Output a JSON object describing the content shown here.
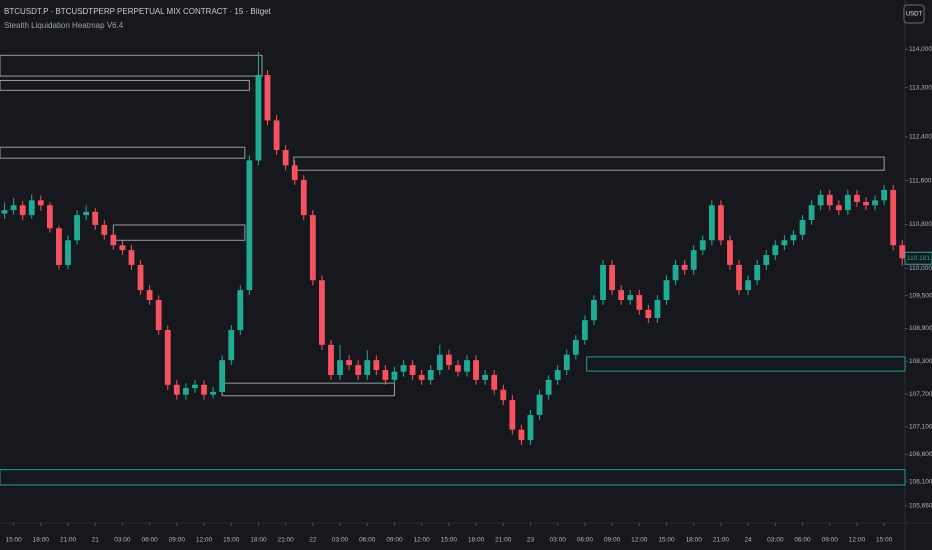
{
  "chart_data": {
    "type": "candlestick",
    "title": "BTCUSDT.P · BTCUSDTPERP PERPETUAL MIX CONTRACT · 15 · Bitget",
    "subtitle": "Stealth Liquidation Heatmap V6.4",
    "currency_button": "USDT",
    "up_color": "#22ab94",
    "down_color": "#f7525f",
    "xlim": [
      -1.5,
      98.3
    ],
    "xticks": [
      {
        "value": 0,
        "label": "15:00"
      },
      {
        "value": 3,
        "label": "18:00"
      },
      {
        "value": 6,
        "label": "21:00"
      },
      {
        "value": 9,
        "label": "21"
      },
      {
        "value": 12,
        "label": "03:00"
      },
      {
        "value": 15,
        "label": "06:00"
      },
      {
        "value": 18,
        "label": "09:00"
      },
      {
        "value": 21,
        "label": "12:00"
      },
      {
        "value": 24,
        "label": "15:00"
      },
      {
        "value": 27,
        "label": "18:00"
      },
      {
        "value": 30,
        "label": "21:00"
      },
      {
        "value": 33,
        "label": "22"
      },
      {
        "value": 36,
        "label": "03:00"
      },
      {
        "value": 39,
        "label": "06:00"
      },
      {
        "value": 42,
        "label": "09:00"
      },
      {
        "value": 45,
        "label": "12:00"
      },
      {
        "value": 48,
        "label": "15:00"
      },
      {
        "value": 51,
        "label": "18:00"
      },
      {
        "value": 54,
        "label": "21:00"
      },
      {
        "value": 57,
        "label": "23"
      },
      {
        "value": 60,
        "label": "03:00"
      },
      {
        "value": 63,
        "label": "06:00"
      },
      {
        "value": 66,
        "label": "09:00"
      },
      {
        "value": 69,
        "label": "12:00"
      },
      {
        "value": 72,
        "label": "15:00"
      },
      {
        "value": 75,
        "label": "18:00"
      },
      {
        "value": 78,
        "label": "21:00"
      },
      {
        "value": 81,
        "label": "24"
      },
      {
        "value": 84,
        "label": "03:00"
      },
      {
        "value": 87,
        "label": "06:00"
      },
      {
        "value": 90,
        "label": "09:00"
      },
      {
        "value": 93,
        "label": "12:00"
      },
      {
        "value": 96,
        "label": "15:00"
      }
    ],
    "ylim": [
      105400,
      114900
    ],
    "yticks": [
      {
        "value": 114000,
        "label": "114,000.0"
      },
      {
        "value": 113300,
        "label": "113,300.0"
      },
      {
        "value": 112400,
        "label": "112,400.0"
      },
      {
        "value": 111600,
        "label": "111,600.0"
      },
      {
        "value": 110800,
        "label": "110,800.0"
      },
      {
        "value": 110000,
        "label": "110,000.0"
      },
      {
        "value": 109500,
        "label": "109,500.0"
      },
      {
        "value": 108900,
        "label": "108,900.0"
      },
      {
        "value": 108300,
        "label": "108,300.0"
      },
      {
        "value": 107700,
        "label": "107,700.0"
      },
      {
        "value": 107100,
        "label": "107,100.0"
      },
      {
        "value": 106600,
        "label": "106,600.0"
      },
      {
        "value": 106100,
        "label": "106,100.0"
      },
      {
        "value": 105660,
        "label": "105,660.0"
      }
    ],
    "last_price": {
      "value": 110181.8,
      "label": "110,181.8"
    },
    "x": [
      -1,
      0,
      1,
      2,
      3,
      4,
      5,
      6,
      7,
      8,
      9,
      10,
      11,
      12,
      13,
      14,
      15,
      16,
      17,
      18,
      19,
      20,
      21,
      22,
      23,
      24,
      25,
      26,
      27,
      28,
      29,
      30,
      31,
      32,
      33,
      34,
      35,
      36,
      37,
      38,
      39,
      40,
      41,
      42,
      43,
      44,
      45,
      46,
      47,
      48,
      49,
      50,
      51,
      52,
      53,
      54,
      55,
      56,
      57,
      58,
      59,
      60,
      61,
      62,
      63,
      64,
      65,
      66,
      67,
      68,
      69,
      70,
      71,
      72,
      73,
      74,
      75,
      76,
      77,
      78,
      79,
      80,
      81,
      82,
      83,
      84,
      85,
      86,
      87,
      88,
      89,
      90,
      91,
      92,
      93,
      94,
      95,
      96,
      97,
      98
    ],
    "open": [
      111000,
      111060,
      111150,
      110970,
      111240,
      111150,
      110730,
      110060,
      110510,
      110970,
      111030,
      110790,
      110610,
      110420,
      110330,
      110060,
      109600,
      109420,
      108870,
      107870,
      107690,
      107810,
      107870,
      107690,
      107740,
      108320,
      108870,
      109600,
      111970,
      113530,
      112700,
      112160,
      111880,
      111610,
      110970,
      109780,
      108600,
      108050,
      108320,
      108230,
      108050,
      108320,
      108140,
      107960,
      108110,
      108230,
      108050,
      107960,
      108140,
      108420,
      108230,
      108110,
      108320,
      107960,
      108050,
      107780,
      107590,
      107050,
      106860,
      107320,
      107690,
      107960,
      108140,
      108420,
      108690,
      109050,
      109420,
      110060,
      109600,
      109420,
      109510,
      109240,
      109090,
      109420,
      109780,
      110060,
      109970,
      110330,
      110510,
      111150,
      110510,
      110060,
      109600,
      109780,
      110060,
      110240,
      110420,
      110510,
      110610,
      110880,
      111150,
      111340,
      111150,
      111060,
      111340,
      111210,
      111150,
      111240,
      111430,
      110420
    ],
    "high": [
      111200,
      111280,
      111230,
      111350,
      111330,
      111200,
      110780,
      110600,
      111060,
      111150,
      111100,
      110880,
      110700,
      110510,
      110420,
      110150,
      109690,
      109500,
      108950,
      107960,
      107900,
      107960,
      107950,
      107830,
      108410,
      108960,
      109690,
      112060,
      113950,
      113620,
      112800,
      112250,
      111970,
      111700,
      111060,
      109870,
      108690,
      108600,
      108410,
      108320,
      108500,
      108410,
      108230,
      108200,
      108320,
      108320,
      108140,
      108230,
      108600,
      108510,
      108320,
      108410,
      108410,
      108140,
      108140,
      107870,
      107680,
      107140,
      107410,
      107780,
      108050,
      108230,
      108510,
      108780,
      109140,
      109510,
      110150,
      110150,
      109690,
      109600,
      109600,
      109330,
      109510,
      109870,
      110150,
      110150,
      110420,
      110600,
      111240,
      111240,
      110600,
      110150,
      109870,
      110150,
      110330,
      110510,
      110600,
      110700,
      110970,
      111240,
      111430,
      111430,
      111240,
      111430,
      111430,
      111300,
      111330,
      111520,
      111520,
      110510
    ],
    "low": [
      110900,
      110980,
      110880,
      110900,
      111050,
      110650,
      109980,
      109980,
      110430,
      110880,
      110700,
      110520,
      110340,
      110240,
      109970,
      109510,
      109330,
      108780,
      107780,
      107600,
      107600,
      107720,
      107600,
      107620,
      107680,
      108230,
      108780,
      109510,
      111880,
      112610,
      112070,
      111790,
      111520,
      110880,
      109690,
      108510,
      107960,
      107960,
      108140,
      107960,
      107960,
      108050,
      107870,
      107870,
      108020,
      107960,
      107870,
      107870,
      108050,
      108140,
      108020,
      108020,
      107870,
      107870,
      107690,
      107500,
      106960,
      106770,
      106770,
      107230,
      107600,
      107870,
      108050,
      108330,
      108600,
      108960,
      109330,
      109510,
      109330,
      109330,
      109150,
      109000,
      109000,
      109330,
      109690,
      109880,
      109880,
      110240,
      110420,
      110420,
      109970,
      109510,
      109510,
      109690,
      109970,
      110150,
      110330,
      110420,
      110520,
      110790,
      111060,
      111060,
      110970,
      110970,
      111120,
      111060,
      111060,
      111150,
      110330,
      110050
    ],
    "close": [
      111060,
      111150,
      110970,
      111240,
      111150,
      110730,
      110060,
      110510,
      110970,
      111030,
      110790,
      110610,
      110420,
      110330,
      110060,
      109600,
      109420,
      108870,
      107870,
      107690,
      107810,
      107870,
      107690,
      107740,
      108320,
      108870,
      109600,
      111970,
      113530,
      112700,
      112160,
      111880,
      111610,
      110970,
      109780,
      108600,
      108050,
      108320,
      108230,
      108050,
      108320,
      108140,
      107960,
      108110,
      108230,
      108050,
      107960,
      108140,
      108420,
      108230,
      108110,
      108320,
      107960,
      108050,
      107780,
      107590,
      107050,
      106860,
      107320,
      107690,
      107960,
      108140,
      108420,
      108690,
      109050,
      109420,
      110060,
      109600,
      109420,
      109510,
      109240,
      109090,
      109420,
      109780,
      110060,
      109970,
      110330,
      110510,
      111150,
      110510,
      110060,
      109600,
      109780,
      110060,
      110240,
      110420,
      110510,
      110610,
      110880,
      111150,
      111340,
      111150,
      111060,
      111340,
      111210,
      111150,
      111240,
      111430,
      110420,
      110181.8
    ],
    "zones": [
      {
        "x": [
          -1.5,
          27.4
        ],
        "y": [
          113510,
          113890
        ],
        "color": "#9a9ca3"
      },
      {
        "x": [
          -1.5,
          26
        ],
        "y": [
          113250,
          113430
        ],
        "color": "#9a9ca3"
      },
      {
        "x": [
          -1.5,
          25.5
        ],
        "y": [
          112010,
          112210
        ],
        "color": "#9a9ca3"
      },
      {
        "x": [
          11,
          25.5
        ],
        "y": [
          110510,
          110790
        ],
        "color": "#9a9ca3"
      },
      {
        "x": [
          23,
          42
        ],
        "y": [
          107670,
          107900
        ],
        "color": "#9a9ca3"
      },
      {
        "x": [
          30.9,
          96
        ],
        "y": [
          111790,
          112030
        ],
        "color": "#9a9ca3"
      },
      {
        "x": [
          63.2,
          98.3
        ],
        "y": [
          108120,
          108380
        ],
        "color": "#1f9e8e"
      },
      {
        "x": [
          -1.5,
          98.3
        ],
        "y": [
          106040,
          106320
        ],
        "color": "#1f9e8e"
      }
    ]
  }
}
